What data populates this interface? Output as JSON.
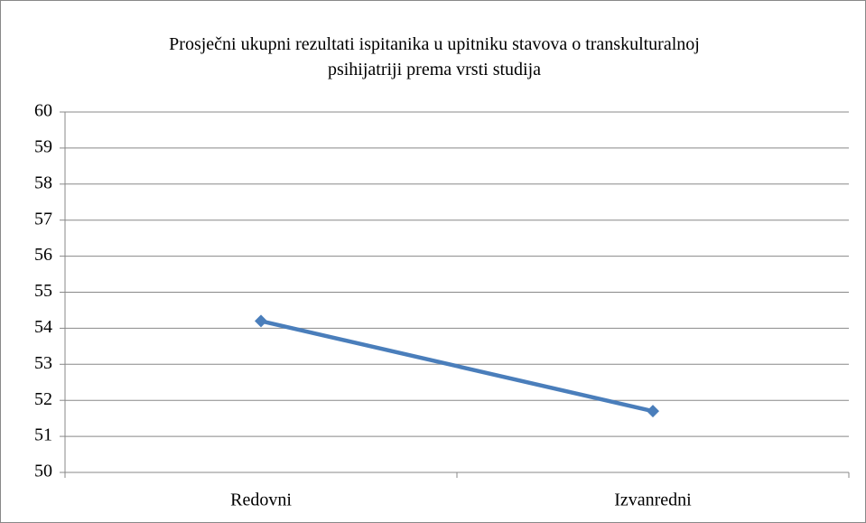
{
  "chart_data": {
    "type": "line",
    "title": "Prosječni ukupni rezultati ispitanika u upitniku stavova o transkulturalnoj psihijatriji prema vrsti studija",
    "categories": [
      "Redovni",
      "Izvanredni"
    ],
    "series": [
      {
        "color": "#4a7ebb",
        "values": [
          54.2,
          51.7
        ]
      }
    ],
    "ylim": [
      50,
      60
    ],
    "yticks": [
      50,
      51,
      52,
      53,
      54,
      55,
      56,
      57,
      58,
      59,
      60
    ],
    "grid": true
  }
}
